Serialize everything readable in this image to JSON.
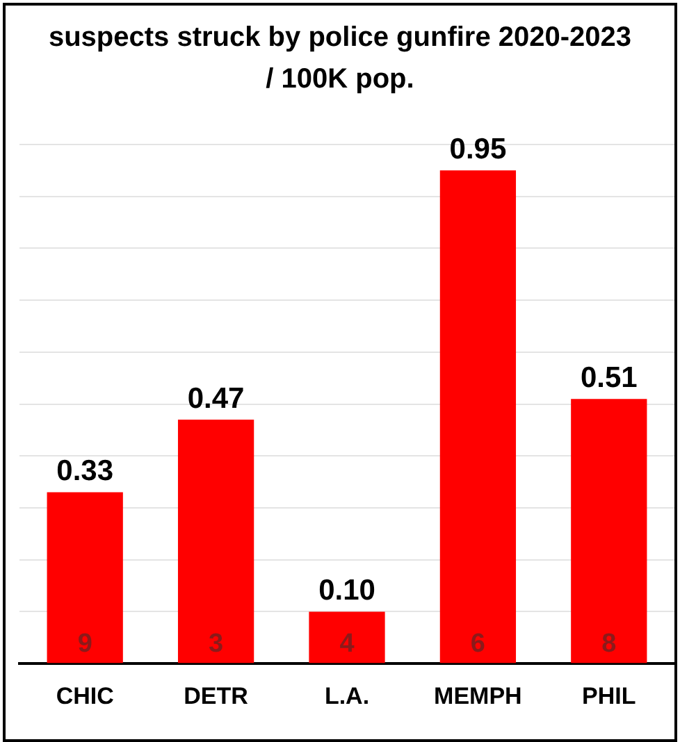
{
  "chart_data": {
    "type": "bar",
    "title": "suspects struck by police gunfire 2020-2023 / 100K pop.",
    "categories": [
      "CHIC",
      "DETR",
      "L.A.",
      "MEMPH",
      "PHIL"
    ],
    "values": [
      0.33,
      0.47,
      0.1,
      0.95,
      0.51
    ],
    "color": "#ff0000",
    "value_labels": [
      "0.33",
      "0.47",
      "0.10",
      "0.95",
      "0.51"
    ],
    "grid": "y",
    "tick_labels": "x",
    "yticks": [
      {
        "value": 0,
        "label": null
      },
      {
        "value": 0.1,
        "label": null
      },
      {
        "value": 0.2,
        "label": null
      },
      {
        "value": 0.3,
        "label": null
      },
      {
        "value": 0.4,
        "label": null
      },
      {
        "value": 0.5,
        "label": null
      },
      {
        "value": 0.6,
        "label": null
      },
      {
        "value": 0.7,
        "label": null
      },
      {
        "value": 0.8,
        "label": null
      },
      {
        "value": 0.9,
        "label": null
      },
      {
        "value": 1.0,
        "label": null
      }
    ],
    "annotations": [
      "9",
      "3",
      "4",
      "6",
      "8"
    ]
  }
}
